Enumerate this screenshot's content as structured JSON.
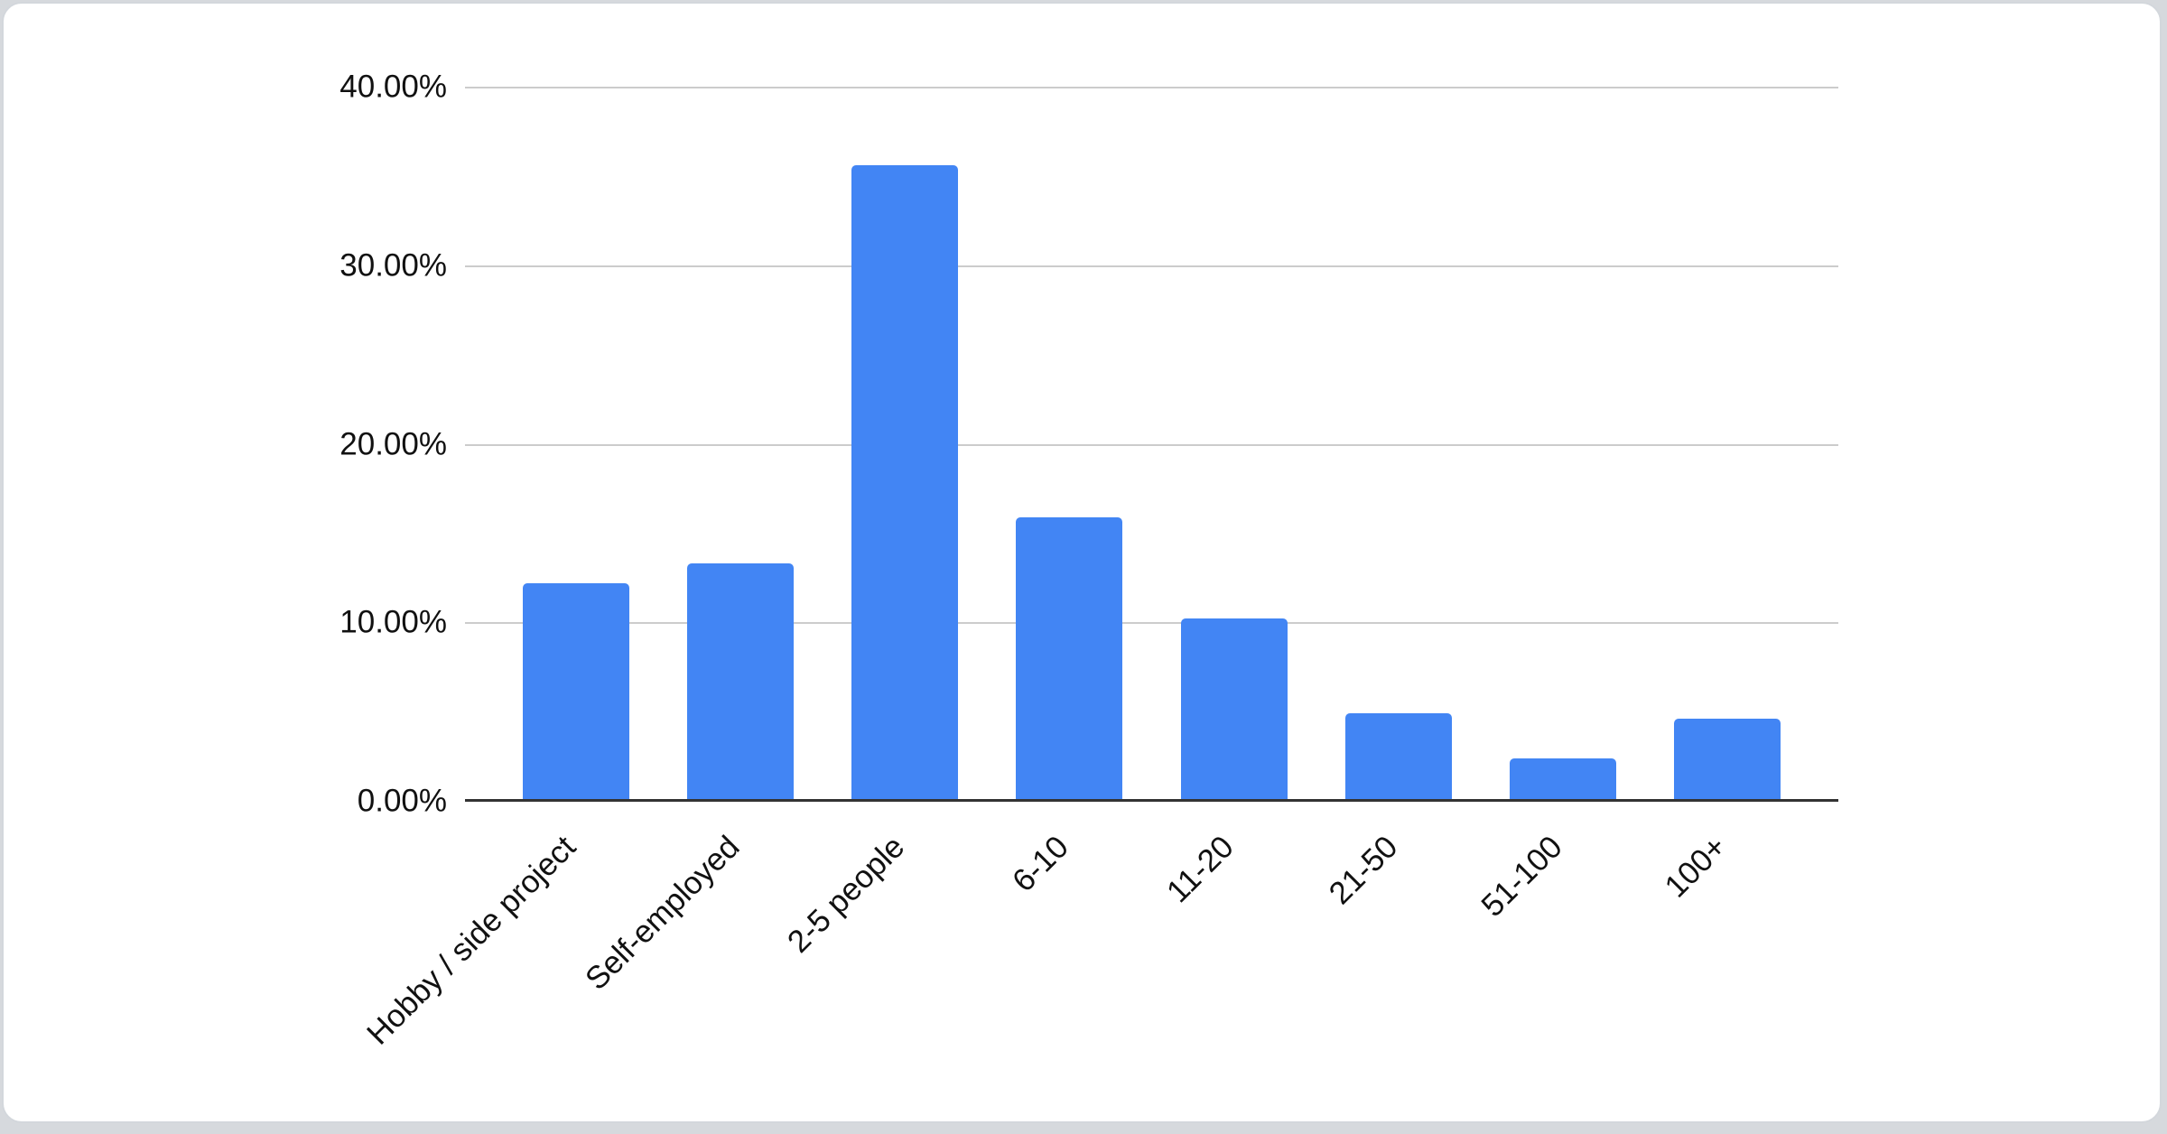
{
  "chart_data": {
    "type": "bar",
    "title": "",
    "categories": [
      "Hobby / side project",
      "Self-employed",
      "2-5 people",
      "6-10",
      "11-20",
      "21-50",
      "51-100",
      "100+"
    ],
    "values": [
      12.2,
      13.3,
      35.6,
      15.9,
      10.2,
      4.9,
      2.4,
      4.6
    ],
    "y_ticks": [
      "40.00%",
      "30.00%",
      "20.00%",
      "10.00%",
      "0.00%"
    ],
    "ylim": [
      0,
      40
    ],
    "xlabel": "",
    "ylabel": "",
    "grid": true,
    "legend": "none"
  },
  "colors": {
    "bar": "#4285f4",
    "gridline": "#cccccc",
    "axis_line": "#333333",
    "label_text": "#111111",
    "card_background": "#ffffff",
    "card_border": "#d3d7dc",
    "page_background": "#d6d9dd"
  }
}
